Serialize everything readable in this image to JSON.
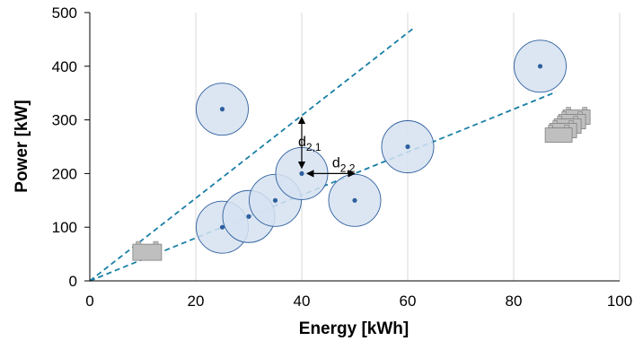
{
  "chart_data": {
    "type": "scatter",
    "xlabel": "Energy [kWh]",
    "ylabel": "Power [kW]",
    "xlim": [
      0,
      100
    ],
    "ylim": [
      0,
      500
    ],
    "xticks": [
      "0",
      "20",
      "40",
      "60",
      "80",
      "100"
    ],
    "yticks": [
      "0",
      "100",
      "200",
      "300",
      "400",
      "500"
    ],
    "grid": "vertical",
    "points": [
      {
        "x": 25,
        "y": 100
      },
      {
        "x": 25,
        "y": 320
      },
      {
        "x": 30,
        "y": 120
      },
      {
        "x": 35,
        "y": 150
      },
      {
        "x": 40,
        "y": 200
      },
      {
        "x": 50,
        "y": 150
      },
      {
        "x": 60,
        "y": 250
      },
      {
        "x": 85,
        "y": 400
      }
    ],
    "trend_lines": [
      {
        "from": [
          0,
          0
        ],
        "to": [
          61,
          470
        ]
      },
      {
        "from": [
          0,
          0
        ],
        "to": [
          88,
          352
        ]
      }
    ],
    "annotations": [
      {
        "main": "d",
        "sub": "2,1",
        "from": [
          40,
          305
        ],
        "to": [
          40,
          210
        ]
      },
      {
        "main": "d",
        "sub": "2,2",
        "from": [
          50,
          200
        ],
        "to": [
          41,
          200
        ]
      }
    ],
    "icons": [
      {
        "name": "single-battery-icon",
        "at": [
          11,
          55
        ]
      },
      {
        "name": "battery-pack-icon",
        "at": [
          89,
          265
        ]
      }
    ],
    "colors": {
      "point": "#2e5f9e",
      "circle_fill": "#d6e2f1",
      "circle_stroke": "#2e5f9e",
      "trend": "#1a7fa6",
      "grid": "#d9d9d9",
      "battery": "#bfbfbf"
    }
  }
}
